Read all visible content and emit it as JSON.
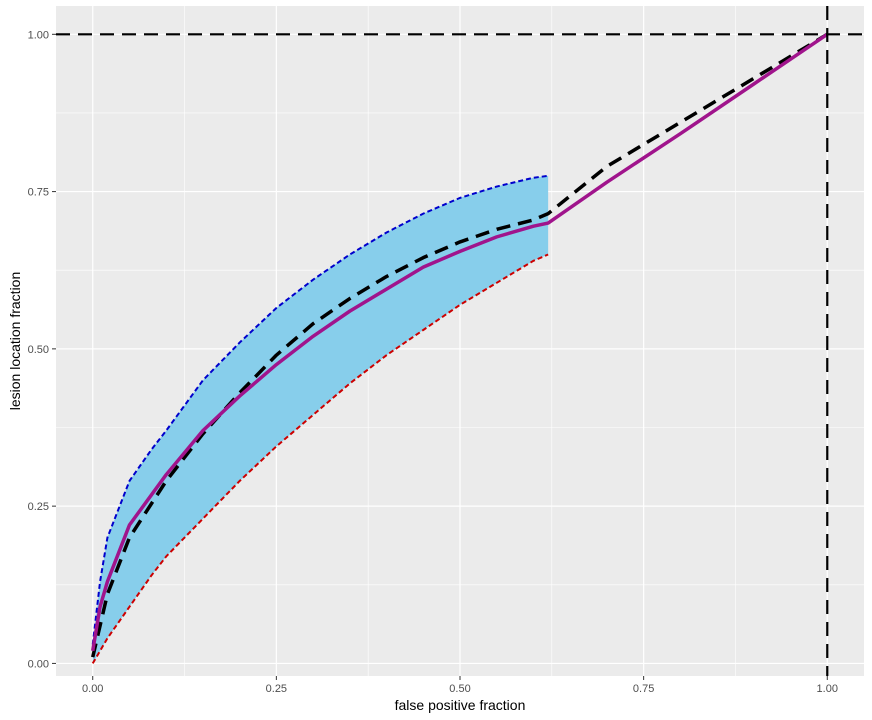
{
  "chart_data": {
    "type": "line",
    "xlabel": "false positive fraction",
    "ylabel": "lesion location fraction",
    "xlim": [
      -0.05,
      1.05
    ],
    "ylim": [
      -0.02,
      1.045
    ],
    "x_ticks": [
      0.0,
      0.25,
      0.5,
      0.75,
      1.0
    ],
    "y_ticks": [
      0.0,
      0.25,
      0.5,
      0.75,
      1.0
    ],
    "x_tick_labels": [
      "0.00",
      "0.25",
      "0.50",
      "0.75",
      "1.00"
    ],
    "y_tick_labels": [
      "0.00",
      "0.25",
      "0.50",
      "0.75",
      "1.00"
    ],
    "grid": true,
    "background": "#EBEBEB",
    "confidence_band": {
      "fill_color": "#87CEEB",
      "x": [
        0.0,
        0.01,
        0.02,
        0.05,
        0.08,
        0.1,
        0.15,
        0.2,
        0.25,
        0.3,
        0.35,
        0.4,
        0.45,
        0.5,
        0.55,
        0.6,
        0.62
      ],
      "upper": [
        0.03,
        0.13,
        0.2,
        0.29,
        0.34,
        0.37,
        0.45,
        0.51,
        0.565,
        0.61,
        0.65,
        0.685,
        0.715,
        0.74,
        0.758,
        0.772,
        0.775
      ],
      "lower": [
        0.0,
        0.02,
        0.04,
        0.09,
        0.14,
        0.17,
        0.23,
        0.29,
        0.345,
        0.395,
        0.445,
        0.49,
        0.53,
        0.57,
        0.605,
        0.64,
        0.65
      ]
    },
    "series": [
      {
        "name": "",
        "color": "#0000CC",
        "style": "dashed-fine",
        "x": [
          0.0,
          0.01,
          0.02,
          0.05,
          0.08,
          0.1,
          0.15,
          0.2,
          0.25,
          0.3,
          0.35,
          0.4,
          0.45,
          0.5,
          0.55,
          0.6,
          0.62
        ],
        "y": [
          0.03,
          0.13,
          0.2,
          0.29,
          0.34,
          0.37,
          0.45,
          0.51,
          0.565,
          0.61,
          0.65,
          0.685,
          0.715,
          0.74,
          0.758,
          0.772,
          0.775
        ]
      },
      {
        "name": "",
        "color": "#CC0000",
        "style": "dashed-fine",
        "x": [
          0.0,
          0.01,
          0.02,
          0.05,
          0.08,
          0.1,
          0.15,
          0.2,
          0.25,
          0.3,
          0.35,
          0.4,
          0.45,
          0.5,
          0.55,
          0.6,
          0.62
        ],
        "y": [
          0.0,
          0.02,
          0.04,
          0.09,
          0.14,
          0.17,
          0.23,
          0.29,
          0.345,
          0.395,
          0.445,
          0.49,
          0.53,
          0.57,
          0.605,
          0.64,
          0.65
        ]
      },
      {
        "name": "",
        "color": "#000000",
        "style": "dashed-thick",
        "x": [
          0.0,
          0.01,
          0.02,
          0.05,
          0.1,
          0.15,
          0.2,
          0.25,
          0.3,
          0.35,
          0.4,
          0.45,
          0.5,
          0.55,
          0.6,
          0.62,
          0.7,
          0.8,
          0.9,
          1.0
        ],
        "y": [
          0.01,
          0.06,
          0.11,
          0.2,
          0.29,
          0.365,
          0.43,
          0.49,
          0.54,
          0.58,
          0.615,
          0.645,
          0.67,
          0.69,
          0.705,
          0.715,
          0.79,
          0.86,
          0.93,
          1.0
        ]
      },
      {
        "name": "",
        "color": "#A0148C",
        "style": "solid",
        "x": [
          0.0,
          0.01,
          0.02,
          0.05,
          0.1,
          0.15,
          0.2,
          0.25,
          0.3,
          0.35,
          0.4,
          0.45,
          0.5,
          0.55,
          0.6,
          0.62,
          0.7,
          0.8,
          0.9,
          1.0
        ],
        "y": [
          0.02,
          0.09,
          0.13,
          0.22,
          0.3,
          0.37,
          0.425,
          0.475,
          0.52,
          0.56,
          0.595,
          0.63,
          0.655,
          0.678,
          0.695,
          0.7,
          0.765,
          0.842,
          0.921,
          1.0
        ]
      }
    ],
    "reference_lines": [
      {
        "orientation": "horizontal",
        "value": 1.0,
        "color": "#000000",
        "style": "dashed"
      },
      {
        "orientation": "vertical",
        "value": 1.0,
        "color": "#000000",
        "style": "dashed"
      }
    ]
  }
}
